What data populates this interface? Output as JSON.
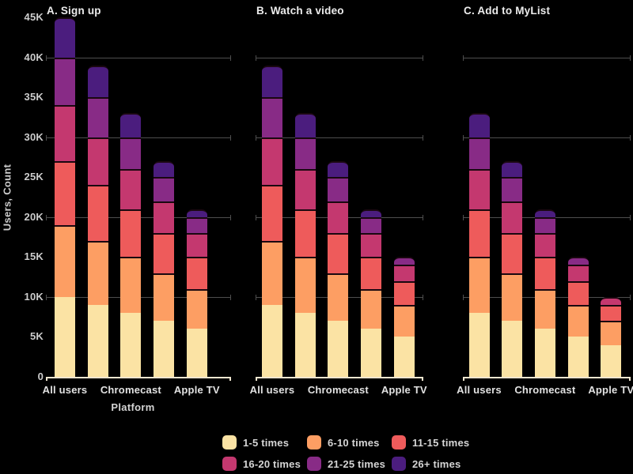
{
  "chart_data": {
    "type": "bar",
    "stacked": true,
    "unit": "K (thousands of users)",
    "ylabel": "Users, Count",
    "xlabel": "Platform",
    "ylim": [
      0,
      45
    ],
    "y_ticks": [
      {
        "label": "45K",
        "value": 45
      },
      {
        "label": "40K",
        "value": 40
      },
      {
        "label": "35K",
        "value": 35
      },
      {
        "label": "30K",
        "value": 30
      },
      {
        "label": "25K",
        "value": 25
      },
      {
        "label": "20K",
        "value": 20
      },
      {
        "label": "15K",
        "value": 15
      },
      {
        "label": "10K",
        "value": 10
      },
      {
        "label": "5K",
        "value": 5
      },
      {
        "label": "0",
        "value": 0
      }
    ],
    "gridline_values": [
      40,
      30,
      20,
      10
    ],
    "x_tick_labels": [
      "All users",
      "Chromecast",
      "Apple TV"
    ],
    "x_tick_bar_indices": [
      0,
      2,
      4
    ],
    "legend_position": "bottom",
    "legend": [
      {
        "label": "1-5 times",
        "color": "#fbe3a4"
      },
      {
        "label": "6-10 times",
        "color": "#fd9e63"
      },
      {
        "label": "11-15 times",
        "color": "#ee5b5b"
      },
      {
        "label": "16-20 times",
        "color": "#c4386f"
      },
      {
        "label": "21-25 times",
        "color": "#882b86"
      },
      {
        "label": "26+ times",
        "color": "#4b1d7e"
      }
    ],
    "panels": [
      {
        "title": "A. Sign up",
        "bar_totals": [
          45,
          39,
          33,
          27,
          21
        ],
        "bars": [
          [
            10,
            9,
            8,
            7,
            6,
            5
          ],
          [
            9,
            8,
            7,
            6,
            5,
            4
          ],
          [
            8,
            7,
            6,
            5,
            4,
            3
          ],
          [
            7,
            6,
            5,
            4,
            3,
            2
          ],
          [
            6,
            5,
            4,
            3,
            2,
            1
          ]
        ]
      },
      {
        "title": "B. Watch a video",
        "bar_totals": [
          39,
          33,
          27,
          21,
          15
        ],
        "bars": [
          [
            9,
            8,
            7,
            6,
            5,
            4
          ],
          [
            8,
            7,
            6,
            5,
            4,
            3
          ],
          [
            7,
            6,
            5,
            4,
            3,
            2
          ],
          [
            6,
            5,
            4,
            3,
            2,
            1
          ],
          [
            5,
            4,
            3,
            2,
            1,
            0
          ]
        ]
      },
      {
        "title": "C. Add to MyList",
        "bar_totals": [
          33,
          27,
          21,
          15,
          10
        ],
        "bars": [
          [
            8,
            7,
            6,
            5,
            4,
            3
          ],
          [
            7,
            6,
            5,
            4,
            3,
            2
          ],
          [
            6,
            5,
            4,
            3,
            2,
            1
          ],
          [
            5,
            4,
            3,
            2,
            1,
            0
          ],
          [
            4,
            3,
            2,
            1,
            0,
            0
          ]
        ]
      }
    ]
  }
}
